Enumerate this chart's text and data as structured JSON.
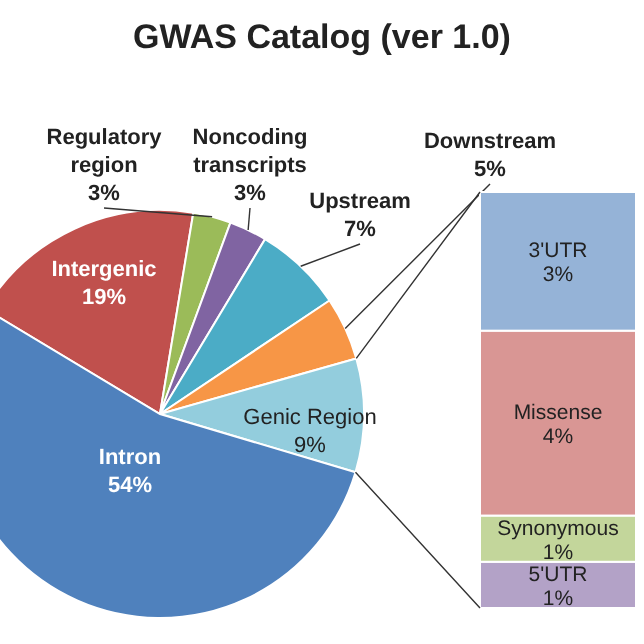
{
  "chart_data": [
    {
      "type": "pie",
      "title": "GWAS Catalog (ver 1.0)",
      "categories": [
        "Intergenic",
        "Regulatory region",
        "Noncoding transcripts",
        "Upstream",
        "Downstream",
        "Genic Region",
        "Intron"
      ],
      "values": [
        19,
        3,
        3,
        7,
        5,
        9,
        54
      ],
      "value_labels": [
        "19%",
        "3%",
        "3%",
        "7%",
        "5%",
        "9%",
        "54%"
      ],
      "colors": [
        "#c0504d",
        "#9bbb59",
        "#8064a2",
        "#4bacc6",
        "#f79646",
        "#93cddd",
        "#4f81bd"
      ]
    },
    {
      "type": "bar",
      "stacked": true,
      "categories": [
        null
      ],
      "series": [
        {
          "name": "5'UTR",
          "color": "#b3a2c7",
          "values": [
            1
          ],
          "value_labels": [
            "1%"
          ]
        },
        {
          "name": "Synonymous",
          "color": "#c3d69b",
          "values": [
            1
          ],
          "value_labels": [
            "1%"
          ]
        },
        {
          "name": "Missense",
          "color": "#d99694",
          "values": [
            4
          ],
          "value_labels": [
            "4%"
          ]
        },
        {
          "name": "3'UTR",
          "color": "#95b3d7",
          "values": [
            3
          ],
          "value_labels": [
            "3%"
          ]
        }
      ]
    }
  ]
}
